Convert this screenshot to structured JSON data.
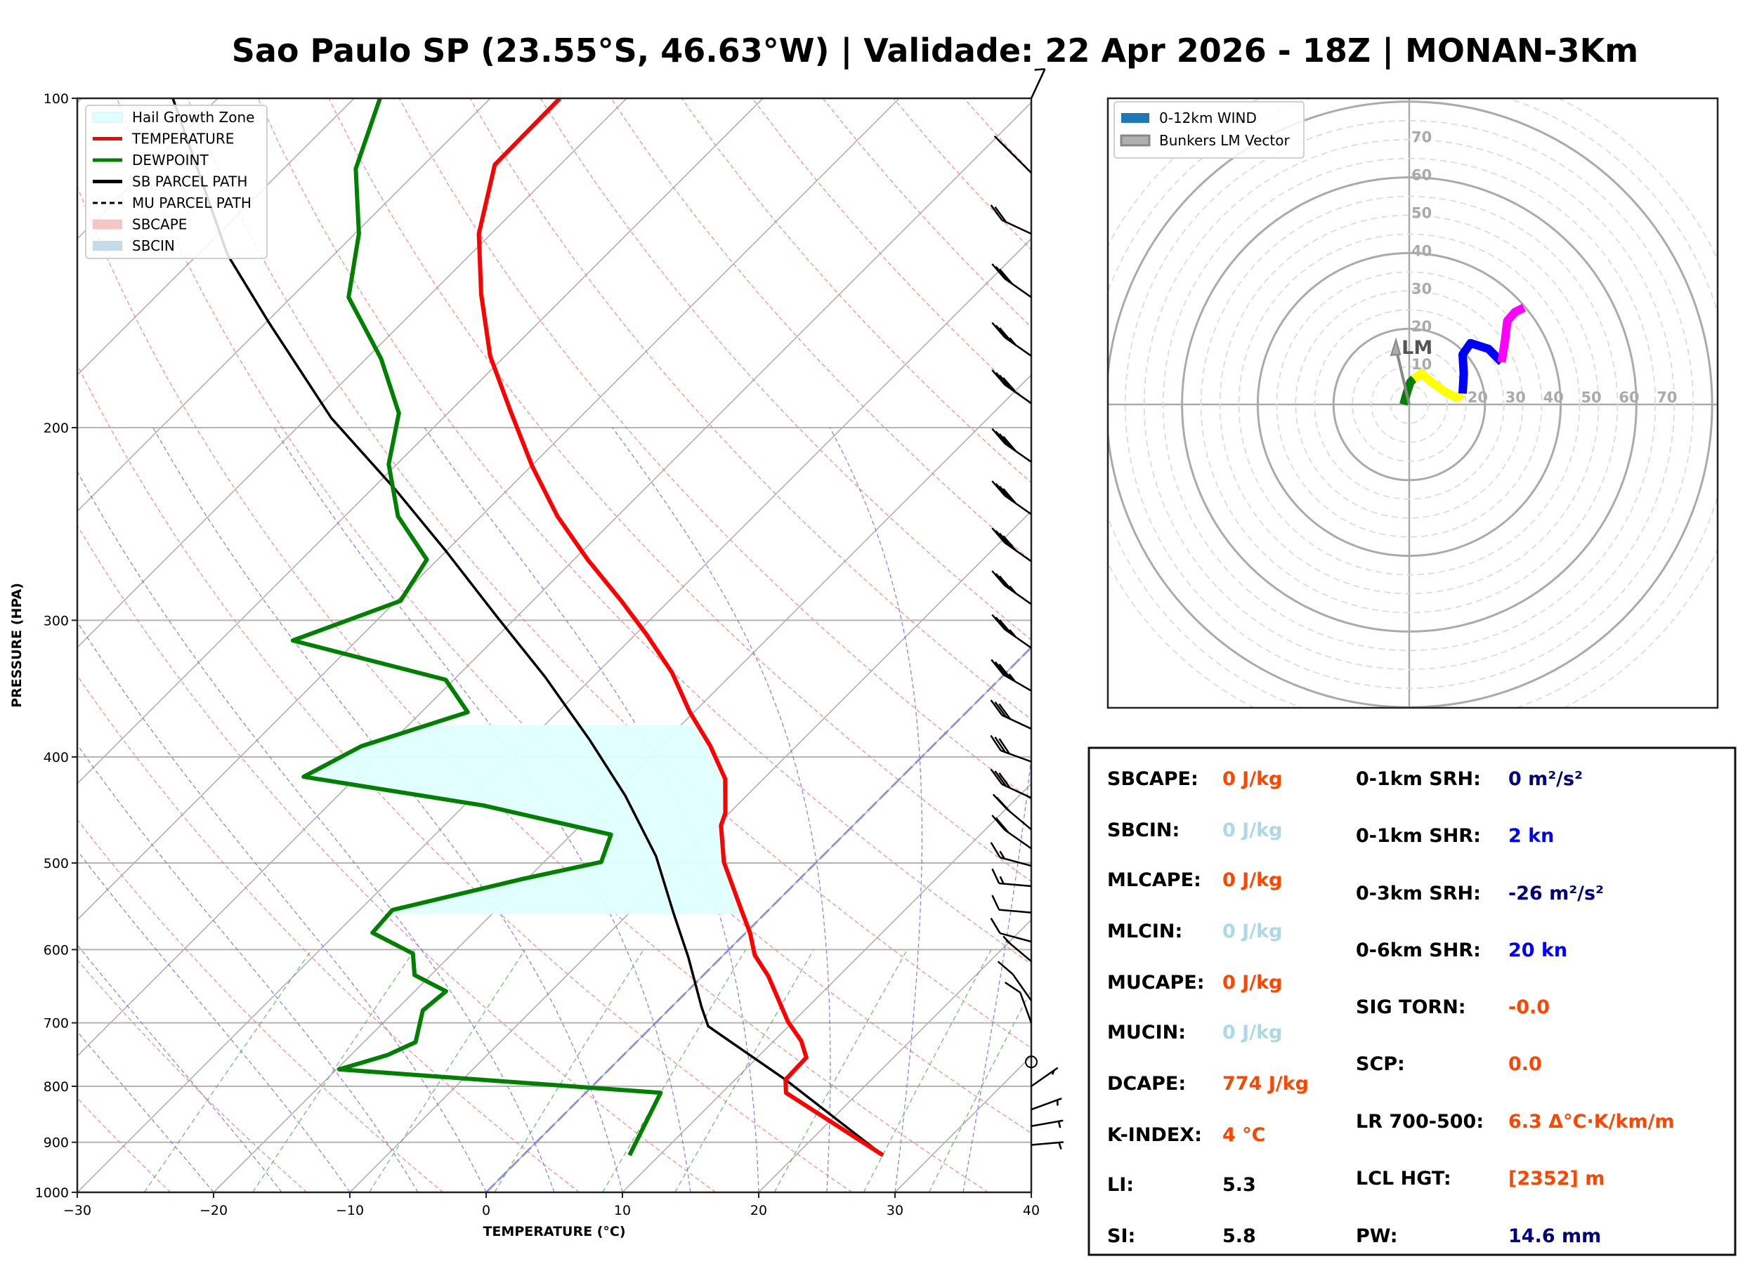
{
  "title": "Sao Paulo SP (23.55°S, 46.63°W) | Validade: 22 Apr 2026 - 18Z | MONAN-3Km",
  "colors": {
    "temperature": "#ff0000",
    "dewpoint": "#008000",
    "parcel": "#000000",
    "hail_zone": "#e0ffff",
    "sbcape": "#f4c6c6",
    "sbcin": "#c6dbe8",
    "dry_adiabat": "#ff6f6f",
    "moist_adiabat": "#6f6fff",
    "mixing_ratio": "#4caf50",
    "isotherm": "#b0b0b0",
    "hodo_ring": "#aaaaaa",
    "hodo_0_1km": "#008000",
    "hodo_1_3km": "#ffff00",
    "hodo_3_6km": "#0000ff",
    "hodo_6_12km": "#ff00ff",
    "lm_vector": "#888888",
    "stat_orange": "#ff4500",
    "stat_lightblue": "#add8e6",
    "stat_navy": "#000080",
    "stat_blue": "#0000ff",
    "stat_black": "#000000"
  },
  "chart_data": [
    {
      "type": "line",
      "name": "skew-t",
      "xlabel": "TEMPERATURE (°C)",
      "ylabel": "PRESSURE (HPA)",
      "xlim": [
        -30,
        40
      ],
      "ylim": [
        1000,
        100
      ],
      "yscale": "log",
      "skew_deg": 45,
      "xticks": [
        -30,
        -20,
        -10,
        0,
        10,
        20,
        30,
        40
      ],
      "xtick_labels": [
        "−30",
        "−20",
        "−10",
        "0",
        "10",
        "20",
        "30",
        "40"
      ],
      "yticks": [
        100,
        200,
        300,
        400,
        500,
        600,
        700,
        800,
        900,
        1000
      ],
      "ytick_labels": [
        "100",
        "200",
        "300",
        "400",
        "500",
        "600",
        "700",
        "800",
        "900",
        "1000"
      ],
      "grid": true,
      "legend_position": "top-left",
      "legend": [
        {
          "label": "Hail Growth Zone",
          "kind": "patch",
          "color_key": "hail_zone"
        },
        {
          "label": "TEMPERATURE",
          "kind": "line",
          "color_key": "temperature"
        },
        {
          "label": "DEWPOINT",
          "kind": "line",
          "color_key": "dewpoint"
        },
        {
          "label": "SB PARCEL PATH",
          "kind": "line",
          "color_key": "parcel"
        },
        {
          "label": "MU PARCEL PATH",
          "kind": "dashed",
          "color_key": "parcel"
        },
        {
          "label": "SBCAPE",
          "kind": "patch",
          "color_key": "sbcape"
        },
        {
          "label": "SBCIN",
          "kind": "patch",
          "color_key": "sbcin"
        }
      ],
      "series": [
        {
          "name": "TEMPERATURE",
          "points": [
            [
              925,
              26.4
            ],
            [
              811,
              14.7
            ],
            [
              789,
              13.7
            ],
            [
              753,
              13.6
            ],
            [
              727,
              12.0
            ],
            [
              698,
              9.6
            ],
            [
              634,
              4.8
            ],
            [
              607,
              2.3
            ],
            [
              579,
              0.3
            ],
            [
              552,
              -2.0
            ],
            [
              499,
              -6.8
            ],
            [
              462,
              -9.7
            ],
            [
              450,
              -10.3
            ],
            [
              419,
              -12.8
            ],
            [
              391,
              -16.3
            ],
            [
              364,
              -20.3
            ],
            [
              335,
              -24.5
            ],
            [
              309,
              -29.2
            ],
            [
              288,
              -33.5
            ],
            [
              264,
              -39.0
            ],
            [
              241,
              -44.4
            ],
            [
              217,
              -49.9
            ],
            [
              193,
              -55.6
            ],
            [
              172,
              -61.1
            ],
            [
              151,
              -66.3
            ],
            [
              133,
              -70.9
            ],
            [
              115,
              -74.8
            ],
            [
              100,
              -74.9
            ]
          ]
        },
        {
          "name": "DEWPOINT",
          "points": [
            [
              925,
              7.8
            ],
            [
              811,
              5.5
            ],
            [
              772,
              -19.8
            ],
            [
              749,
              -17.3
            ],
            [
              729,
              -16.2
            ],
            [
              682,
              -18.0
            ],
            [
              655,
              -17.7
            ],
            [
              633,
              -21.2
            ],
            [
              605,
              -22.9
            ],
            [
              579,
              -27.4
            ],
            [
              552,
              -27.6
            ],
            [
              517,
              -20.3
            ],
            [
              499,
              -15.8
            ],
            [
              471,
              -17.1
            ],
            [
              443,
              -28.6
            ],
            [
              417,
              -43.9
            ],
            [
              391,
              -41.9
            ],
            [
              364,
              -36.6
            ],
            [
              340,
              -40.6
            ],
            [
              313,
              -54.7
            ],
            [
              288,
              -49.7
            ],
            [
              264,
              -50.8
            ],
            [
              241,
              -56.1
            ],
            [
              216,
              -60.6
            ],
            [
              194,
              -63.6
            ],
            [
              173,
              -68.9
            ],
            [
              152,
              -75.8
            ],
            [
              133,
              -79.7
            ],
            [
              116,
              -84.7
            ],
            [
              100,
              -88.1
            ]
          ]
        },
        {
          "name": "SB PARCEL PATH",
          "points": [
            [
              925,
              26.4
            ],
            [
              789,
              13.7
            ],
            [
              705,
              4.1
            ],
            [
              677,
              2.2
            ],
            [
              610,
              -2.4
            ],
            [
              555,
              -6.8
            ],
            [
              493,
              -12.2
            ],
            [
              434,
              -18.9
            ],
            [
              386,
              -25.6
            ],
            [
              338,
              -33.5
            ],
            [
              299,
              -41.2
            ],
            [
              259,
              -50.1
            ],
            [
              228,
              -58.2
            ],
            [
              196,
              -68.2
            ],
            [
              160,
              -79.9
            ],
            [
              139,
              -87.8
            ],
            [
              100,
              -103.3
            ]
          ]
        }
      ],
      "hail_growth_zone": {
        "p_bottom": 557,
        "p_top": 372
      },
      "wind_barbs": [
        {
          "p": 100,
          "dir": 155,
          "spd": 10
        },
        {
          "p": 117,
          "dir": 225,
          "spd": 20
        },
        {
          "p": 133,
          "dir": 245,
          "spd": 20
        },
        {
          "p": 152,
          "dir": 235,
          "spd": 30
        },
        {
          "p": 172,
          "dir": 235,
          "spd": 35
        },
        {
          "p": 190,
          "dir": 235,
          "spd": 40
        },
        {
          "p": 215,
          "dir": 235,
          "spd": 40
        },
        {
          "p": 240,
          "dir": 235,
          "spd": 40
        },
        {
          "p": 265,
          "dir": 235,
          "spd": 40
        },
        {
          "p": 290,
          "dir": 235,
          "spd": 35
        },
        {
          "p": 318,
          "dir": 235,
          "spd": 35
        },
        {
          "p": 348,
          "dir": 240,
          "spd": 35
        },
        {
          "p": 377,
          "dir": 245,
          "spd": 30
        },
        {
          "p": 404,
          "dir": 250,
          "spd": 30
        },
        {
          "p": 436,
          "dir": 245,
          "spd": 30
        },
        {
          "p": 466,
          "dir": 230,
          "spd": 20
        },
        {
          "p": 485,
          "dir": 235,
          "spd": 20
        },
        {
          "p": 503,
          "dir": 255,
          "spd": 15
        },
        {
          "p": 525,
          "dir": 265,
          "spd": 15
        },
        {
          "p": 555,
          "dir": 265,
          "spd": 10
        },
        {
          "p": 590,
          "dir": 255,
          "spd": 10
        },
        {
          "p": 615,
          "dir": 230,
          "spd": 5
        },
        {
          "p": 668,
          "dir": 215,
          "spd": 10
        },
        {
          "p": 700,
          "dir": 200,
          "spd": 10
        },
        {
          "p": 760,
          "dir": 0,
          "spd": 0
        },
        {
          "p": 800,
          "dir": 125,
          "spd": 5
        },
        {
          "p": 840,
          "dir": 110,
          "spd": 5
        },
        {
          "p": 870,
          "dir": 100,
          "spd": 5
        },
        {
          "p": 905,
          "dir": 95,
          "spd": 5
        }
      ]
    },
    {
      "type": "line",
      "name": "hodograph",
      "units": "kn",
      "ring_values": [
        10,
        20,
        30,
        40,
        50,
        60,
        70
      ],
      "ring_labels": [
        "10",
        "20",
        "30",
        "40",
        "50",
        "60",
        "70"
      ],
      "x_ring_labels": [
        "20",
        "30",
        "40",
        "50",
        "60",
        "70"
      ],
      "legend_position": "top-left",
      "legend": [
        {
          "label": "0-12km WIND",
          "kind": "patch",
          "color": "#1f77b4"
        },
        {
          "label": "Bunkers LM Vector",
          "kind": "patch-outline",
          "color": "#aaaaaa"
        }
      ],
      "segments": [
        {
          "name": "0-1km",
          "color_key": "hodo_0_1km",
          "uv": [
            [
              -1.5,
              0
            ],
            [
              -0.6,
              3.2
            ],
            [
              0.3,
              5.9
            ],
            [
              1.2,
              6.8
            ]
          ]
        },
        {
          "name": "1-3km",
          "color_key": "hodo_1_3km",
          "uv": [
            [
              1.2,
              6.8
            ],
            [
              3.2,
              8.2
            ],
            [
              5.9,
              5.9
            ],
            [
              9.7,
              3.2
            ],
            [
              12.6,
              1.8
            ],
            [
              14.1,
              2.9
            ]
          ]
        },
        {
          "name": "3-6km",
          "color_key": "hodo_3_6km",
          "uv": [
            [
              14.1,
              2.9
            ],
            [
              14.4,
              8.2
            ],
            [
              14.1,
              13.2
            ],
            [
              16.2,
              16.2
            ],
            [
              20.9,
              14.7
            ],
            [
              24.4,
              11.2
            ]
          ]
        },
        {
          "name": "6-12km",
          "color_key": "hodo_6_12km",
          "uv": [
            [
              24.4,
              11.2
            ],
            [
              25.3,
              17.1
            ],
            [
              25.9,
              22.1
            ],
            [
              27.9,
              24.4
            ],
            [
              30.3,
              25.6
            ]
          ]
        }
      ],
      "bunkers_lm": {
        "label": "LM",
        "u": -3.5,
        "v": 17.1
      }
    }
  ],
  "stats": {
    "left": [
      {
        "label": "SBCAPE:",
        "value": "0 J/kg",
        "color_key": "stat_orange"
      },
      {
        "label": "SBCIN:",
        "value": "0 J/kg",
        "color_key": "stat_lightblue"
      },
      {
        "label": "MLCAPE:",
        "value": "0 J/kg",
        "color_key": "stat_orange"
      },
      {
        "label": "MLCIN:",
        "value": "0 J/kg",
        "color_key": "stat_lightblue"
      },
      {
        "label": "MUCAPE:",
        "value": "0 J/kg",
        "color_key": "stat_orange"
      },
      {
        "label": "MUCIN:",
        "value": "0 J/kg",
        "color_key": "stat_lightblue"
      },
      {
        "label": "DCAPE:",
        "value": "774 J/kg",
        "color_key": "stat_orange"
      },
      {
        "label": "K-INDEX:",
        "value": "4 °C",
        "color_key": "stat_orange"
      },
      {
        "label": "LI:",
        "value": "5.3",
        "color_key": "stat_black"
      },
      {
        "label": "SI:",
        "value": "5.8",
        "color_key": "stat_black"
      }
    ],
    "right": [
      {
        "label": "0-1km SRH:",
        "value": "0 m²/s²",
        "color_key": "stat_navy"
      },
      {
        "label": "0-1km SHR:",
        "value": "2 kn",
        "color_key": "stat_blue"
      },
      {
        "label": "0-3km SRH:",
        "value": "-26 m²/s²",
        "color_key": "stat_navy"
      },
      {
        "label": "0-6km SHR:",
        "value": "20 kn",
        "color_key": "stat_blue"
      },
      {
        "label": "SIG TORN:",
        "value": "-0.0",
        "color_key": "stat_orange"
      },
      {
        "label": "SCP:",
        "value": "0.0",
        "color_key": "stat_orange"
      },
      {
        "label": "LR 700-500:",
        "value": "6.3 Δ°C·K/km/m",
        "color_key": "stat_orange"
      },
      {
        "label": "LCL HGT:",
        "value": "[2352] m",
        "color_key": "stat_orange"
      },
      {
        "label": "PW:",
        "value": "14.6 mm",
        "color_key": "stat_navy"
      }
    ]
  }
}
